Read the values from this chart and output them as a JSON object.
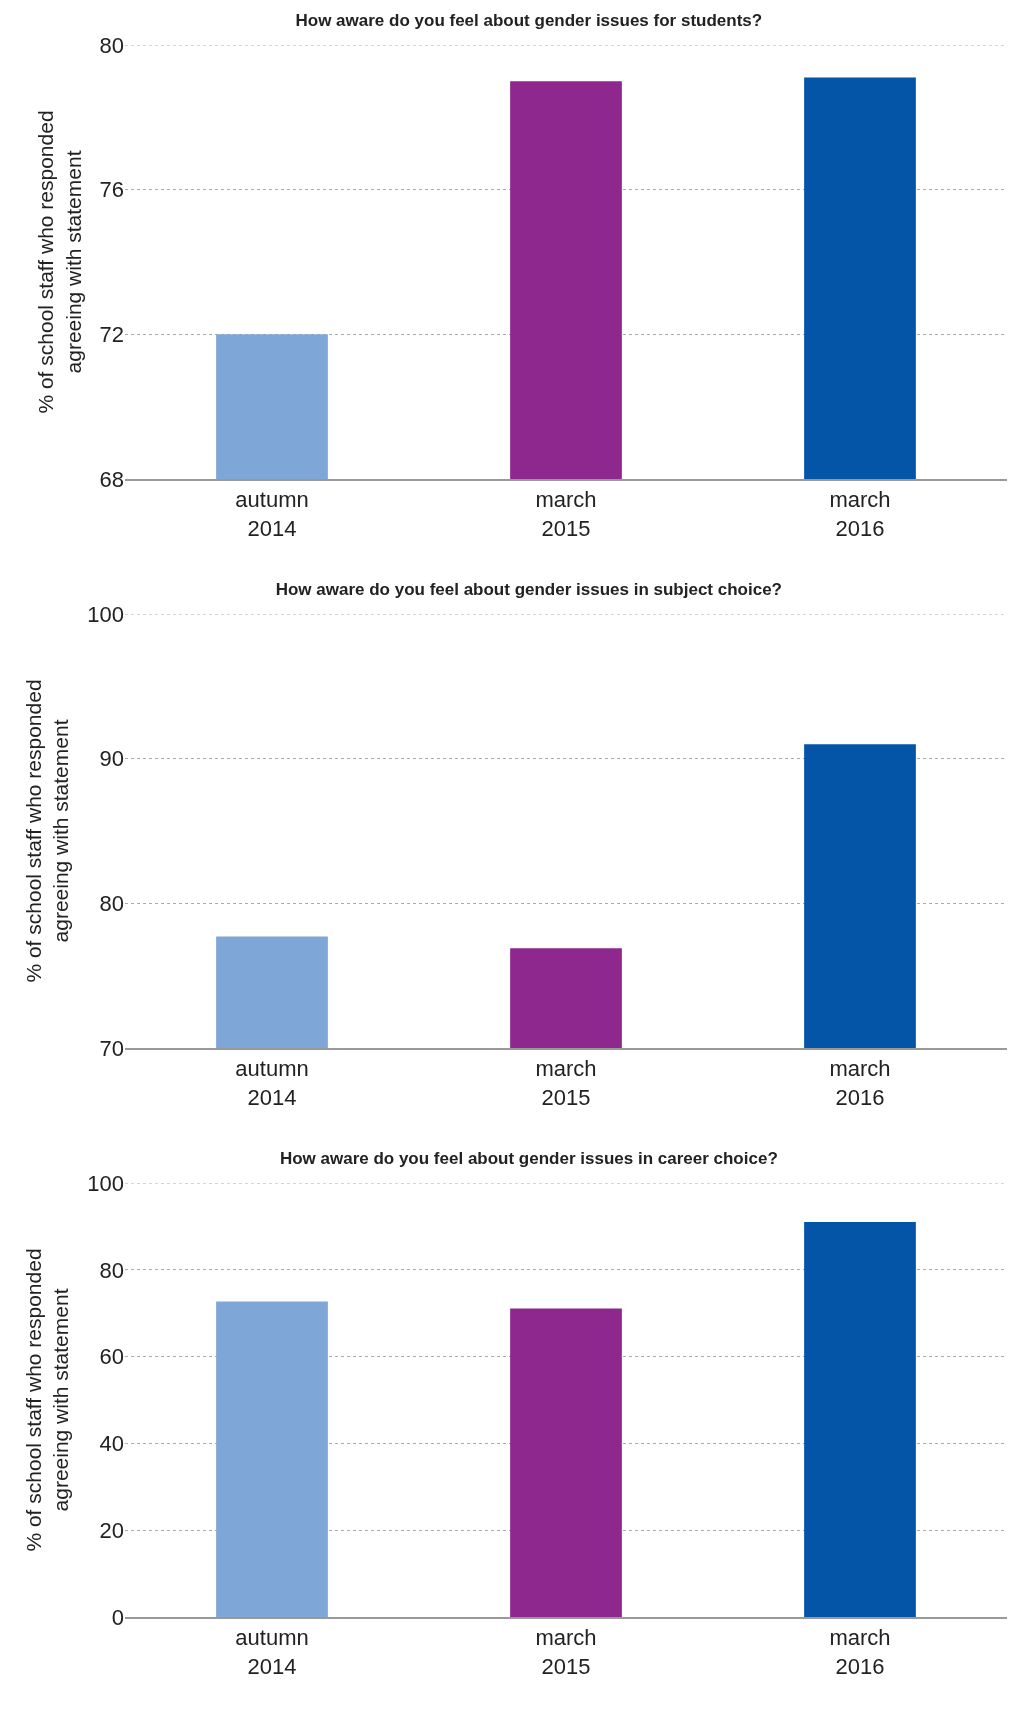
{
  "chart_data": [
    {
      "type": "bar",
      "title": "How aware do you feel about gender issues for students?",
      "ylabel": "% of school staff who responded\nagreeing with statement",
      "categories": [
        "autumn\n2014",
        "march\n2015",
        "march\n2016"
      ],
      "values": [
        72.0,
        79.0,
        79.1
      ],
      "colors": [
        "#7ea6d6",
        "#8e278e",
        "#0455a8"
      ],
      "ylim": [
        68,
        80
      ],
      "yticks": [
        68,
        72,
        76,
        80
      ],
      "grid": "y"
    },
    {
      "type": "bar",
      "title": "How aware do you feel about gender issues in subject choice?",
      "ylabel": "% of school staff who responded\nagreeing with statement",
      "categories": [
        "autumn\n2014",
        "march\n2015",
        "march\n2016"
      ],
      "values": [
        77.7,
        76.9,
        91.0
      ],
      "colors": [
        "#7ea6d6",
        "#8e278e",
        "#0455a8"
      ],
      "ylim": [
        70,
        100
      ],
      "yticks": [
        70,
        80,
        90,
        100
      ],
      "grid": "y"
    },
    {
      "type": "bar",
      "title": "How aware do you feel about gender issues in career choice?",
      "ylabel": "% of school staff who responded\nagreeing with statement",
      "categories": [
        "autumn\n2014",
        "march\n2015",
        "march\n2016"
      ],
      "values": [
        72.7,
        71.1,
        91.0
      ],
      "colors": [
        "#7ea6d6",
        "#8e278e",
        "#0455a8"
      ],
      "ylim": [
        0,
        100
      ],
      "yticks": [
        0,
        20,
        40,
        60,
        80,
        100
      ],
      "grid": "y"
    }
  ]
}
